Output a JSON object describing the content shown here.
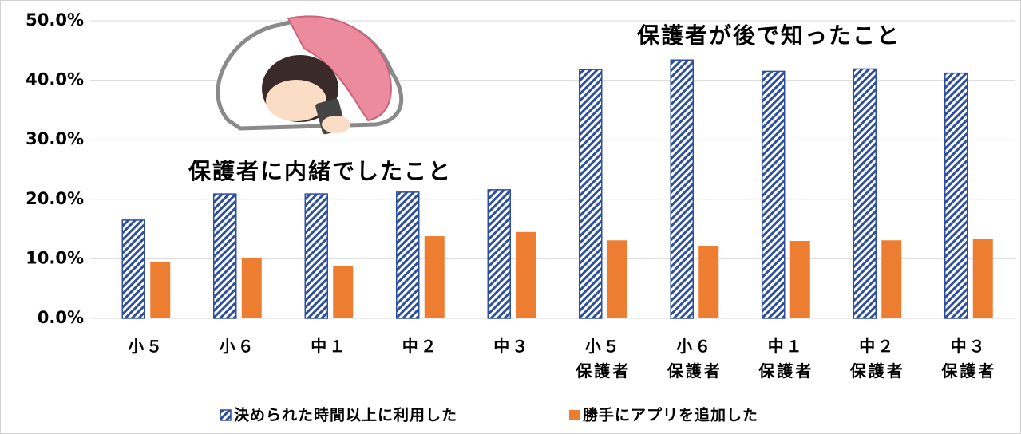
{
  "chart_data": {
    "type": "bar",
    "categories": [
      "小５",
      "小６",
      "中１",
      "中２",
      "中３",
      "小５\n保護者",
      "小６\n保護者",
      "中１\n保護者",
      "中２\n保護者",
      "中３\n保護者"
    ],
    "series": [
      {
        "name": "決められた時間以上に利用した",
        "color": "#2e4f9e",
        "values": [
          16.5,
          20.9,
          20.9,
          21.2,
          21.6,
          41.8,
          43.4,
          41.5,
          41.9,
          41.2
        ]
      },
      {
        "name": "勝手にアプリを追加した",
        "color": "#ed7d31",
        "values": [
          9.4,
          10.2,
          8.8,
          13.8,
          14.5,
          13.1,
          12.2,
          13.0,
          13.1,
          13.3
        ]
      }
    ],
    "ylim": [
      0,
      50
    ],
    "yticks": [
      {
        "value": 0,
        "label": "0.0%"
      },
      {
        "value": 10,
        "label": "10.0%"
      },
      {
        "value": 20,
        "label": "20.0%"
      },
      {
        "value": 30,
        "label": "30.0%"
      },
      {
        "value": 40,
        "label": "40.0%"
      },
      {
        "value": 50,
        "label": "50.0%"
      }
    ],
    "grid": true,
    "annotations": [
      "保護者に内緒でしたこと",
      "保護者が後で知ったこと"
    ]
  }
}
